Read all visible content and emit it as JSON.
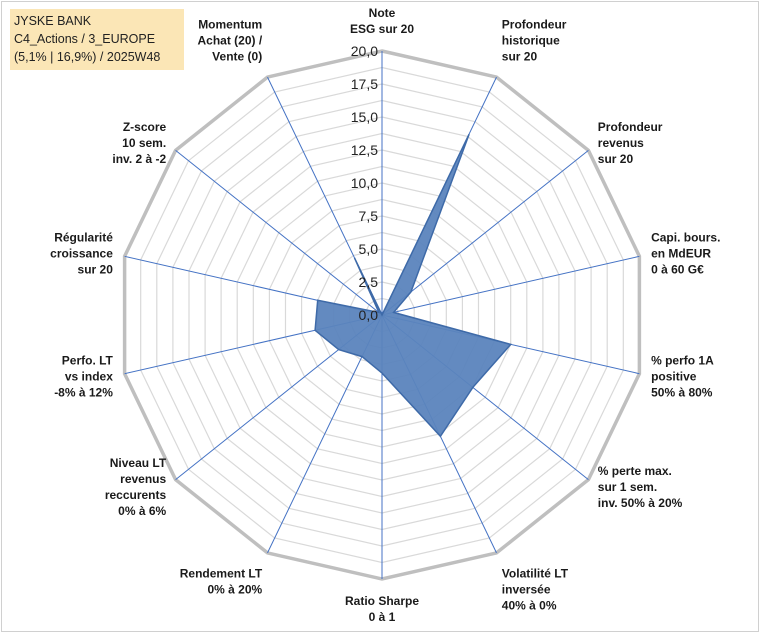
{
  "header": {
    "line1": "JYSKE BANK",
    "line2": "C4_Actions / 3_EUROPE",
    "line3": "(5,1% | 16,9%) / 2025W48"
  },
  "colors": {
    "fill": "#5b84bd",
    "stroke": "#3e6aa8",
    "grid": "#d9d9d9",
    "outer": "#bfbfbf",
    "spoke": "#4472c4",
    "header_bg": "#fbe6b6"
  },
  "chart_data": {
    "type": "radar",
    "rmin": 0,
    "rmax": 20,
    "ticks": [
      "0,0",
      "2,5",
      "5,0",
      "7,5",
      "10,0",
      "12,5",
      "15,0",
      "17,5",
      "20,0"
    ],
    "grid_step": 1.25,
    "categories": [
      [
        "Note",
        "ESG sur 20"
      ],
      [
        "Profondeur",
        "historique",
        "sur 20"
      ],
      [
        "Profondeur",
        "revenus",
        "sur 20"
      ],
      [
        "Capi. bours.",
        "en MdEUR",
        "0 à 60 G€"
      ],
      [
        "% perfo 1A",
        "positive",
        "50% à 80%"
      ],
      [
        "% perte max.",
        "sur 1 sem.",
        "inv. 50% à 20%"
      ],
      [
        "Volatilité LT",
        "inversée",
        "40% à 0%"
      ],
      [
        "Ratio Sharpe",
        "0 à 1"
      ],
      [
        "Rendement LT",
        "0% à 20%"
      ],
      [
        "Niveau LT",
        "revenus",
        "reccurents",
        "0% à 6%"
      ],
      [
        "Perfo. LT",
        "vs index",
        "-8% à 12%"
      ],
      [
        "Régularité",
        "croissance",
        "sur 20"
      ],
      [
        "Z-score",
        "10 sem.",
        "inv. 2 à -2"
      ],
      [
        "Momentum",
        "Achat (20) /",
        "Vente (0)"
      ]
    ],
    "series": [
      {
        "values": [
          0,
          15.2,
          2.8,
          0.9,
          10.0,
          8.8,
          10.2,
          4.4,
          3.5,
          4.2,
          5.2,
          5.0,
          0.3,
          4.8
        ]
      }
    ]
  }
}
